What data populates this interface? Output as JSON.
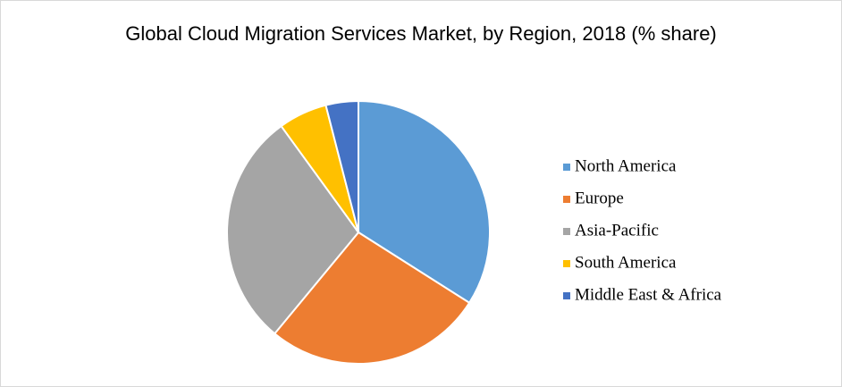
{
  "chart_data": {
    "type": "pie",
    "title": "Global Cloud Migration Services Market, by Region, 2018 (% share)",
    "categories": [
      "North America",
      "Europe",
      "Asia-Pacific",
      "South America",
      "Middle East & Africa"
    ],
    "values": [
      34,
      27,
      29,
      6,
      4
    ],
    "colors": [
      "#5b9bd5",
      "#ed7d31",
      "#a5a5a5",
      "#ffc000",
      "#4472c4"
    ],
    "legend": "right"
  }
}
